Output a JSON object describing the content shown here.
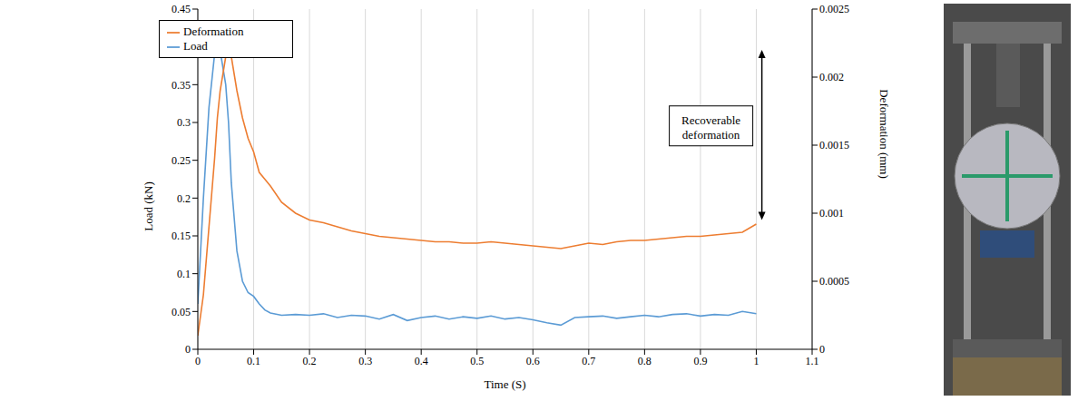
{
  "chart_data": {
    "type": "line",
    "x_label": "Time (S)",
    "y_label": "Load (kN)",
    "y2_label": "Deformation (mm)",
    "x": [
      0,
      0.01,
      0.02,
      0.03,
      0.035,
      0.04,
      0.05,
      0.055,
      0.06,
      0.07,
      0.08,
      0.09,
      0.1,
      0.11,
      0.12,
      0.13,
      0.15,
      0.175,
      0.2,
      0.225,
      0.25,
      0.275,
      0.3,
      0.325,
      0.35,
      0.375,
      0.4,
      0.425,
      0.45,
      0.475,
      0.5,
      0.525,
      0.55,
      0.575,
      0.6,
      0.625,
      0.65,
      0.675,
      0.7,
      0.725,
      0.75,
      0.775,
      0.8,
      0.825,
      0.85,
      0.875,
      0.9,
      0.925,
      0.95,
      0.975,
      1.0
    ],
    "series": [
      {
        "name": "Load",
        "color": "#5B9BD5",
        "values": [
          0.06,
          0.2,
          0.32,
          0.39,
          0.4,
          0.395,
          0.35,
          0.3,
          0.22,
          0.13,
          0.09,
          0.075,
          0.07,
          0.06,
          0.052,
          0.048,
          0.045,
          0.046,
          0.045,
          0.047,
          0.042,
          0.045,
          0.044,
          0.04,
          0.046,
          0.038,
          0.042,
          0.044,
          0.04,
          0.043,
          0.041,
          0.044,
          0.04,
          0.042,
          0.039,
          0.035,
          0.032,
          0.042,
          0.043,
          0.044,
          0.041,
          0.043,
          0.045,
          0.043,
          0.046,
          0.047,
          0.044,
          0.046,
          0.045,
          0.05,
          0.047
        ]
      },
      {
        "name": "Deformation",
        "color": "#ED7D31",
        "axis": "y2",
        "values": [
          0.0001,
          0.0004,
          0.0009,
          0.0014,
          0.0017,
          0.0019,
          0.00215,
          0.0022,
          0.00215,
          0.0019,
          0.0017,
          0.00155,
          0.00145,
          0.0013,
          0.00125,
          0.0012,
          0.00108,
          0.001,
          0.00095,
          0.00093,
          0.0009,
          0.00087,
          0.00085,
          0.00083,
          0.00082,
          0.00081,
          0.0008,
          0.00079,
          0.00079,
          0.00078,
          0.00078,
          0.00079,
          0.00078,
          0.00077,
          0.00076,
          0.00075,
          0.00074,
          0.00076,
          0.00078,
          0.00077,
          0.00079,
          0.0008,
          0.0008,
          0.00081,
          0.00082,
          0.00083,
          0.00083,
          0.00084,
          0.00085,
          0.00086,
          0.00092
        ]
      }
    ],
    "xlim": [
      0,
      1.1
    ],
    "xticks": [
      0,
      0.1,
      0.2,
      0.3,
      0.4,
      0.5,
      0.6,
      0.7,
      0.8,
      0.9,
      1,
      1.1
    ],
    "ylim": [
      0,
      0.45
    ],
    "yticks": [
      0,
      0.05,
      0.1,
      0.15,
      0.2,
      0.25,
      0.3,
      0.35,
      0.4,
      0.45
    ],
    "y2lim": [
      0,
      0.0025
    ],
    "y2ticks": [
      0,
      0.0005,
      0.001,
      0.0015,
      0.002,
      0.0025
    ],
    "grid": "x",
    "legend": "upper left",
    "annotations": [
      {
        "text": "Recoverable deformation",
        "x": 1.01,
        "y_from": 0.0022,
        "y_to": 0.00095
      }
    ]
  }
}
